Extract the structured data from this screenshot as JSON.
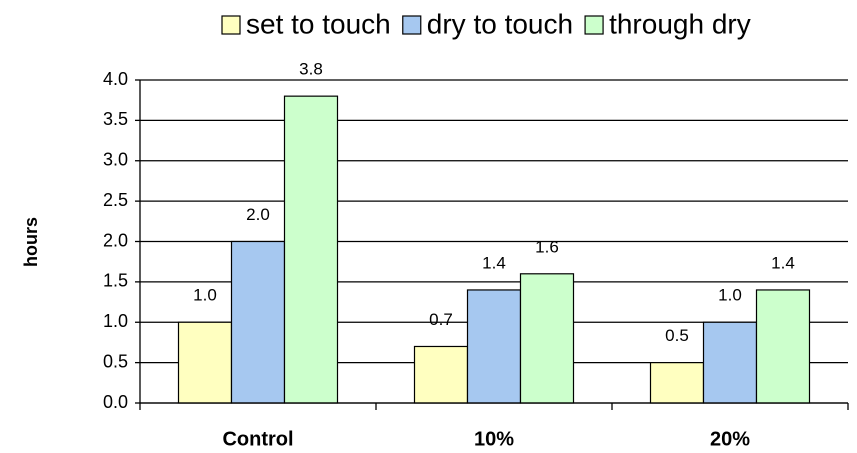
{
  "chart_data": {
    "type": "bar",
    "ylabel": "hours",
    "categories": [
      "Control",
      "10%",
      "20%"
    ],
    "series": [
      {
        "name": "set to touch",
        "color": "#ffffc0",
        "values": [
          1.0,
          0.7,
          0.5
        ],
        "value_labels": [
          "1.0",
          "0.7",
          "0.5"
        ]
      },
      {
        "name": "dry to touch",
        "color": "#a6c8f0",
        "values": [
          2.0,
          1.4,
          1.0
        ],
        "value_labels": [
          "2.0",
          "1.4",
          "1.0"
        ]
      },
      {
        "name": "through dry",
        "color": "#ccffcc",
        "values": [
          3.8,
          1.6,
          1.4
        ],
        "value_labels": [
          "3.8",
          "1.6",
          "1.4"
        ]
      }
    ],
    "ylim": [
      0,
      4
    ],
    "yticks": [
      {
        "value": 0,
        "label": "0.0"
      },
      {
        "value": 0.5,
        "label": "0.5"
      },
      {
        "value": 1,
        "label": "1.0"
      },
      {
        "value": 1.5,
        "label": "1.5"
      },
      {
        "value": 2,
        "label": "2.0"
      },
      {
        "value": 2.5,
        "label": "2.5"
      },
      {
        "value": 3,
        "label": "3.0"
      },
      {
        "value": 3.5,
        "label": "3.5"
      },
      {
        "value": 4,
        "label": "4.0"
      }
    ],
    "grid": true,
    "legend": "top"
  }
}
